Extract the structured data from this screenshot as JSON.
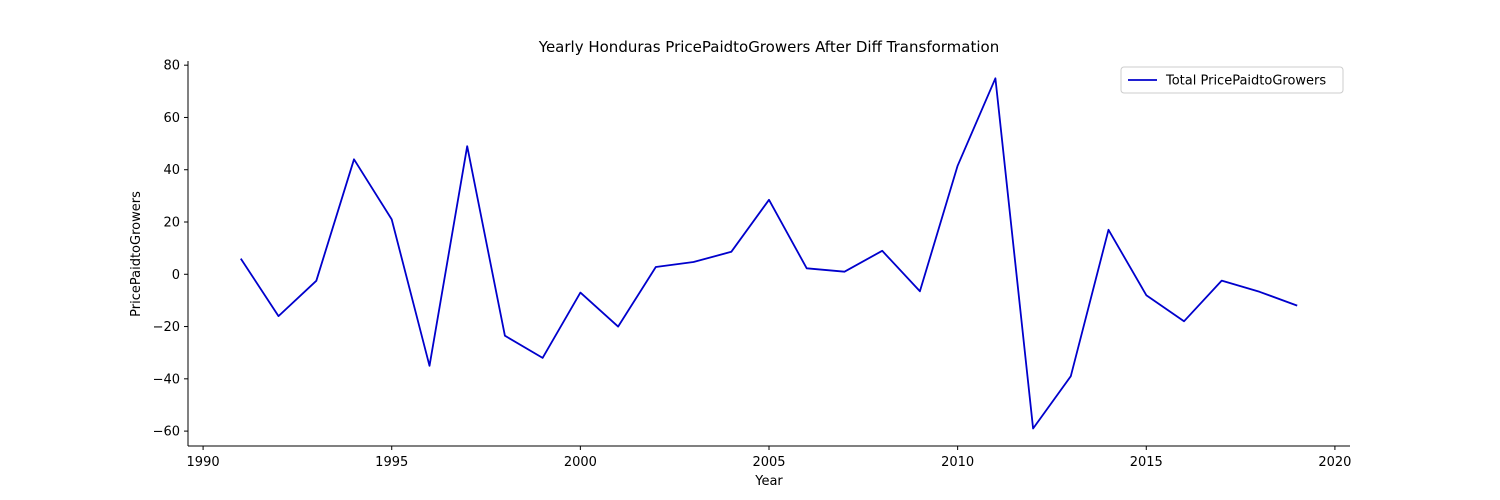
{
  "chart_data": {
    "type": "line",
    "title": "Yearly Honduras PricePaidtoGrowers After Diff Transformation",
    "xlabel": "Year",
    "ylabel": "PricePaidtoGrowers",
    "xlim": [
      1989.6,
      2020.4
    ],
    "ylim": [
      -65.7,
      81.6
    ],
    "xticks": [
      1990,
      1995,
      2000,
      2005,
      2010,
      2015,
      2020
    ],
    "yticks": [
      -60,
      -40,
      -20,
      0,
      20,
      40,
      60,
      80
    ],
    "grid": false,
    "legend_position": "top-right",
    "series": [
      {
        "name": "Total PricePaidtoGrowers",
        "color": "#0000cc",
        "x": [
          1991,
          1992,
          1993,
          1994,
          1995,
          1996,
          1997,
          1998,
          1999,
          2000,
          2001,
          2002,
          2003,
          2004,
          2005,
          2006,
          2007,
          2008,
          2009,
          2010,
          2011,
          2012,
          2013,
          2014,
          2015,
          2016,
          2017,
          2018,
          2019
        ],
        "y": [
          6,
          -16,
          -2.5,
          44,
          21,
          -35,
          49,
          -23.5,
          -32,
          -7,
          -20,
          2.8,
          4.7,
          8.6,
          28.5,
          2.3,
          1,
          9,
          -6.5,
          41.5,
          75,
          -59,
          -39,
          17,
          -8,
          -18,
          -2.4,
          -6.7,
          -12
        ]
      }
    ]
  }
}
